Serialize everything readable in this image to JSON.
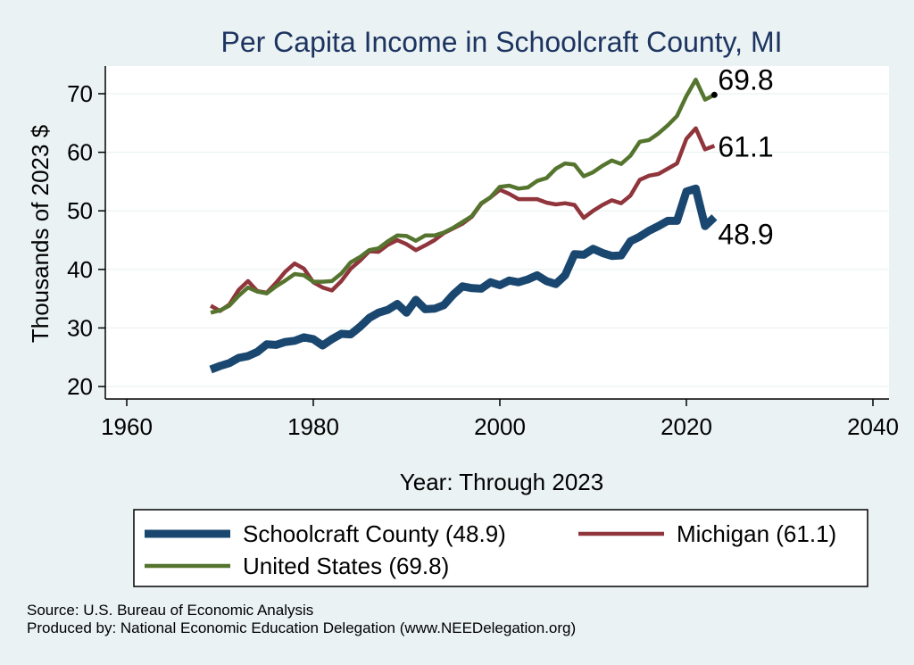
{
  "chart_data": {
    "type": "line",
    "title": "Per Capita Income in Schoolcraft County, MI",
    "xlabel": "Year: Through 2023",
    "ylabel": "Thousands of 2023 $",
    "xlim": [
      1960,
      2040
    ],
    "ylim": [
      20,
      75
    ],
    "xticks": [
      1960,
      1980,
      2000,
      2020,
      2040
    ],
    "yticks": [
      20,
      30,
      40,
      50,
      60,
      70
    ],
    "x": [
      1969,
      1970,
      1971,
      1972,
      1973,
      1974,
      1975,
      1976,
      1977,
      1978,
      1979,
      1980,
      1981,
      1982,
      1983,
      1984,
      1985,
      1986,
      1987,
      1988,
      1989,
      1990,
      1991,
      1992,
      1993,
      1994,
      1995,
      1996,
      1997,
      1998,
      1999,
      2000,
      2001,
      2002,
      2003,
      2004,
      2005,
      2006,
      2007,
      2008,
      2009,
      2010,
      2011,
      2012,
      2013,
      2014,
      2015,
      2016,
      2017,
      2018,
      2019,
      2020,
      2021,
      2022,
      2023
    ],
    "series": [
      {
        "name": "Schoolcraft County",
        "legend": "Schoolcraft County (48.9)",
        "end_label": "48.9",
        "color": "#1a476f",
        "values": [
          22.9,
          23.5,
          24.0,
          24.9,
          25.2,
          25.9,
          27.2,
          27.1,
          27.6,
          27.8,
          28.4,
          28.1,
          27.0,
          28.1,
          29.0,
          28.9,
          30.2,
          31.7,
          32.6,
          33.1,
          34.1,
          32.6,
          34.8,
          33.2,
          33.3,
          33.9,
          35.7,
          37.1,
          36.8,
          36.7,
          37.8,
          37.3,
          38.1,
          37.8,
          38.3,
          39.0,
          38.0,
          37.5,
          39.0,
          42.6,
          42.5,
          43.5,
          42.8,
          42.3,
          42.4,
          44.8,
          45.6,
          46.6,
          47.4,
          48.3,
          48.3,
          53.3,
          53.8,
          47.4,
          48.9
        ]
      },
      {
        "name": "Michigan",
        "legend": "Michigan (61.1)",
        "end_label": "61.1",
        "color": "#90353b",
        "values": [
          33.8,
          32.9,
          34.0,
          36.5,
          38.0,
          36.3,
          36.0,
          37.7,
          39.6,
          41.0,
          40.1,
          37.8,
          36.9,
          36.4,
          38.0,
          40.1,
          41.5,
          43.1,
          43.0,
          44.2,
          45.0,
          44.3,
          43.3,
          44.1,
          45.0,
          46.2,
          47.0,
          47.8,
          49.0,
          51.2,
          52.3,
          53.6,
          52.9,
          52.0,
          52.0,
          52.0,
          51.4,
          51.1,
          51.3,
          51.0,
          48.8,
          50.0,
          51.0,
          51.8,
          51.3,
          52.6,
          55.3,
          56.0,
          56.3,
          57.2,
          58.1,
          62.3,
          64.1,
          60.5,
          61.1
        ]
      },
      {
        "name": "United States",
        "legend": "United States (69.8)",
        "end_label": "69.8",
        "color": "#55752f",
        "values": [
          32.6,
          33.0,
          33.8,
          35.5,
          36.9,
          36.2,
          35.9,
          37.1,
          38.1,
          39.2,
          39.0,
          37.9,
          37.9,
          38.0,
          39.3,
          41.2,
          42.1,
          43.3,
          43.6,
          44.8,
          45.8,
          45.7,
          44.9,
          45.8,
          45.8,
          46.3,
          47.1,
          48.1,
          49.1,
          51.3,
          52.3,
          54.1,
          54.3,
          53.8,
          54.0,
          55.1,
          55.6,
          57.2,
          58.1,
          57.9,
          55.9,
          56.6,
          57.7,
          58.6,
          58.0,
          59.4,
          61.8,
          62.1,
          63.2,
          64.6,
          66.2,
          69.6,
          72.4,
          69.0,
          69.8
        ]
      }
    ],
    "legend_position": "bottom"
  },
  "source_lines": [
    "Source: U.S. Bureau of Economic Analysis",
    "Produced by: National Economic Education Delegation (www.NEEDelegation.org)"
  ]
}
